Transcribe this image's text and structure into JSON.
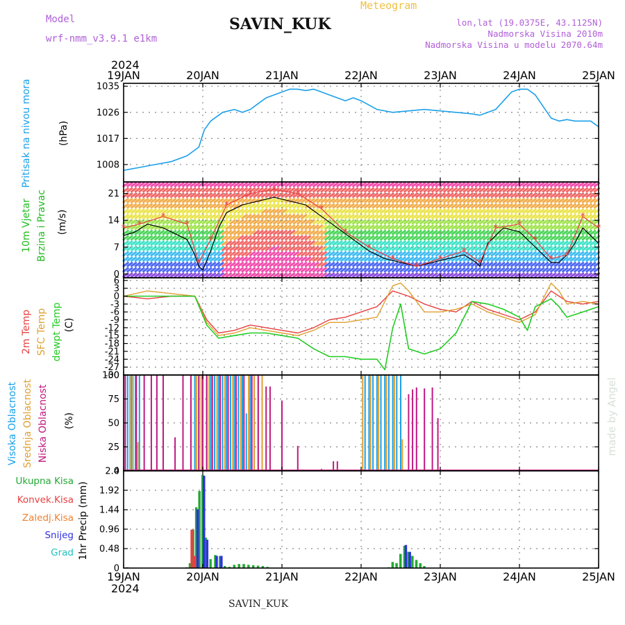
{
  "header": {
    "model_label": "Model",
    "model_value": "wrf-nmm_v3.9.1  e1km",
    "station": "SAVIN_KUK",
    "product": "Meteogram",
    "lonlat": "lon,lat (19.0375E, 43.1125N)",
    "elevation": "Nadmorska Visina 2010m",
    "model_elevation": "Nadmorska Visina u modelu 2070.64m",
    "year": "2024",
    "footer_station": "SAVIN_KUK",
    "credit": "made by Angel"
  },
  "colors": {
    "model": "#b05fd8",
    "product": "#f0c040",
    "pressure": "#1aa0e8",
    "wind_green": "#22bb22",
    "t2m": "#e84040",
    "sfc": "#e0a030",
    "dew": "#22cc22",
    "cloud_high": "#1aa0e8",
    "cloud_mid": "#e0a030",
    "cloud_low": "#c01880",
    "precip_total": "#22aa33",
    "precip_conv": "#e84040",
    "precip_frz": "#f08030",
    "precip_snow": "#3030e0",
    "precip_hail": "#20c0c0"
  },
  "chart_data": [
    {
      "type": "line",
      "panel": "pressure",
      "title": "Meteogram",
      "ylabel": [
        "Pritisak na nivou mora",
        "(hPa)"
      ],
      "ylim": [
        1002,
        1036
      ],
      "yticks": [
        1008,
        1017,
        1026,
        1035
      ],
      "x": [
        "19JAN",
        "20JAN",
        "21JAN",
        "22JAN",
        "23JAN",
        "24JAN",
        "25JAN"
      ],
      "grid": true,
      "series": [
        {
          "name": "Pritisak na nivou mora",
          "x": [
            0,
            0.2,
            0.4,
            0.6,
            0.8,
            0.95,
            1.02,
            1.1,
            1.25,
            1.4,
            1.5,
            1.6,
            1.7,
            1.8,
            1.9,
            2.0,
            2.1,
            2.2,
            2.3,
            2.4,
            2.5,
            2.6,
            2.7,
            2.8,
            2.9,
            3.0,
            3.2,
            3.4,
            3.6,
            3.8,
            4.0,
            4.2,
            4.4,
            4.5,
            4.6,
            4.7,
            4.8,
            4.9,
            5.0,
            5.1,
            5.2,
            5.3,
            5.4,
            5.5,
            5.6,
            5.7,
            5.8,
            5.9,
            6.0
          ],
          "values": [
            1006,
            1007,
            1008,
            1009,
            1011,
            1014,
            1020,
            1023,
            1026,
            1027,
            1026,
            1027,
            1029,
            1031,
            1032,
            1033,
            1034,
            1034,
            1033.5,
            1034,
            1033,
            1032,
            1031,
            1030,
            1031,
            1030,
            1027,
            1026,
            1026.5,
            1027,
            1026.5,
            1026,
            1025.5,
            1025,
            1026,
            1027,
            1030,
            1033,
            1034,
            1034,
            1032,
            1028,
            1024,
            1023,
            1023.5,
            1023,
            1023,
            1023,
            1021
          ]
        }
      ]
    },
    {
      "type": "line",
      "panel": "wind",
      "ylabel": [
        "10m Vjetar",
        "Brzina i Pravac",
        "(m/s)"
      ],
      "ylim": [
        -1,
        24
      ],
      "yticks": [
        0,
        7,
        14,
        21
      ],
      "x": [
        "19JAN",
        "20JAN",
        "21JAN",
        "22JAN",
        "23JAN",
        "24JAN",
        "25JAN"
      ],
      "grid": true,
      "series": [
        {
          "name": "wind speed",
          "x": [
            0,
            0.15,
            0.3,
            0.5,
            0.7,
            0.8,
            0.9,
            0.95,
            1.0,
            1.1,
            1.2,
            1.3,
            1.5,
            1.7,
            1.9,
            2.1,
            2.3,
            2.5,
            2.7,
            2.9,
            3.1,
            3.3,
            3.5,
            3.7,
            3.9,
            4.1,
            4.3,
            4.45,
            4.5,
            4.6,
            4.8,
            5.0,
            5.1,
            5.2,
            5.3,
            5.4,
            5.5,
            5.6,
            5.7,
            5.8,
            5.9,
            6.0
          ],
          "values": [
            10,
            11,
            13,
            12,
            10,
            9,
            5,
            2,
            1,
            6,
            12,
            16,
            18,
            19,
            20,
            19,
            18,
            15,
            12,
            9,
            6,
            4,
            3,
            2,
            3,
            4,
            5,
            3,
            2,
            8,
            12,
            11,
            9,
            7,
            5,
            3,
            3,
            5,
            8,
            12,
            10,
            8
          ]
        },
        {
          "name": "gust",
          "x": [
            0,
            0.2,
            0.5,
            0.8,
            0.95,
            1.1,
            1.3,
            1.6,
            1.9,
            2.2,
            2.5,
            2.8,
            3.1,
            3.4,
            3.7,
            4.0,
            4.3,
            4.5,
            4.7,
            5.0,
            5.2,
            5.4,
            5.6,
            5.8,
            6.0
          ],
          "values": [
            12,
            13,
            15,
            13,
            3,
            9,
            18,
            21,
            22,
            21,
            17,
            11,
            7,
            4,
            2,
            4,
            6,
            3,
            12,
            13,
            9,
            4,
            5,
            15,
            12
          ]
        }
      ]
    },
    {
      "type": "line",
      "panel": "temperature",
      "ylabel": [
        "2m Temp",
        "SFC Temp",
        "dewpt Temp",
        "(C)"
      ],
      "ylim": [
        -30,
        7
      ],
      "yticks": [
        6,
        3,
        0,
        -3,
        -6,
        -9,
        -12,
        -15,
        -18,
        -21,
        -24,
        -27,
        -30
      ],
      "x": [
        "19JAN",
        "20JAN",
        "21JAN",
        "22JAN",
        "23JAN",
        "24JAN",
        "25JAN"
      ],
      "grid": true,
      "series": [
        {
          "name": "2m Temp",
          "x": [
            0,
            0.3,
            0.6,
            0.9,
            1.05,
            1.2,
            1.4,
            1.6,
            1.8,
            2.0,
            2.2,
            2.4,
            2.6,
            2.8,
            3.0,
            3.2,
            3.4,
            3.6,
            3.8,
            4.0,
            4.2,
            4.4,
            4.6,
            4.8,
            5.0,
            5.2,
            5.4,
            5.5,
            5.6,
            5.8,
            6.0
          ],
          "values": [
            0,
            -1,
            0,
            0,
            -9,
            -14,
            -13,
            -11,
            -12,
            -13,
            -14,
            -12,
            -9,
            -8,
            -6,
            -4,
            2,
            0,
            -3,
            -5,
            -6,
            -2,
            -5,
            -7,
            -9,
            -6,
            2,
            0,
            -2,
            -3,
            -2
          ]
        },
        {
          "name": "SFC Temp",
          "x": [
            0,
            0.3,
            0.6,
            0.9,
            1.05,
            1.2,
            1.4,
            1.6,
            1.8,
            2.0,
            2.2,
            2.4,
            2.6,
            2.8,
            3.0,
            3.2,
            3.4,
            3.5,
            3.6,
            3.8,
            4.0,
            4.2,
            4.4,
            4.6,
            4.8,
            5.0,
            5.2,
            5.4,
            5.5,
            5.6,
            5.8,
            6.0
          ],
          "values": [
            0,
            2,
            1,
            0,
            -10,
            -15,
            -14,
            -12,
            -13,
            -14,
            -15,
            -13,
            -10,
            -10,
            -9,
            -8,
            4,
            5,
            2,
            -6,
            -6,
            -5,
            -3,
            -6,
            -8,
            -10,
            -7,
            5,
            2,
            -3,
            -2,
            -3
          ]
        },
        {
          "name": "dewpt Temp",
          "x": [
            0,
            0.3,
            0.6,
            0.9,
            1.05,
            1.2,
            1.4,
            1.6,
            1.8,
            2.0,
            2.2,
            2.4,
            2.6,
            2.8,
            3.0,
            3.2,
            3.3,
            3.4,
            3.5,
            3.6,
            3.8,
            4.0,
            4.2,
            4.4,
            4.6,
            4.8,
            5.0,
            5.1,
            5.2,
            5.4,
            5.5,
            5.6,
            5.8,
            6.0
          ],
          "values": [
            0,
            0,
            0,
            0,
            -11,
            -16,
            -15,
            -14,
            -14,
            -15,
            -16,
            -20,
            -23,
            -23,
            -24,
            -24,
            -28,
            -12,
            -3,
            -20,
            -22,
            -20,
            -14,
            -2,
            -3,
            -5,
            -8,
            -13,
            -4,
            -1,
            -4,
            -8,
            -6,
            -4
          ]
        }
      ]
    },
    {
      "type": "bar",
      "panel": "cloud",
      "ylabel": [
        "Visoka Oblacnost",
        "Srednja Oblacnost",
        "Niska Oblacnost",
        "(%)"
      ],
      "ylim": [
        0,
        100
      ],
      "yticks": [
        0,
        25,
        50,
        75,
        100
      ],
      "x": [
        "19JAN",
        "20JAN",
        "21JAN",
        "22JAN",
        "23JAN",
        "24JAN",
        "25JAN"
      ],
      "grid": true,
      "series": [
        {
          "name": "Visoka Oblacnost",
          "x": [
            0.05,
            0.1,
            0.15,
            0.2,
            0.9,
            0.95,
            1.0,
            1.05,
            1.1,
            1.15,
            1.2,
            1.25,
            1.3,
            1.35,
            1.4,
            1.45,
            1.5,
            1.55,
            1.6,
            1.65,
            3.05,
            3.1,
            3.15,
            3.2,
            3.25,
            3.3,
            3.35,
            3.4,
            3.45,
            3.5
          ],
          "values": [
            100,
            100,
            100,
            100,
            100,
            100,
            100,
            100,
            100,
            100,
            100,
            100,
            100,
            100,
            100,
            100,
            100,
            60,
            100,
            100,
            100,
            100,
            100,
            100,
            100,
            100,
            100,
            100,
            100,
            100
          ]
        },
        {
          "name": "Srednja Oblacnost",
          "x": [
            0.08,
            0.12,
            0.18,
            0.85,
            0.92,
            0.98,
            1.08,
            1.18,
            1.28,
            1.38,
            1.48,
            1.58,
            1.65,
            1.7,
            1.75,
            3.02,
            3.12,
            3.22,
            3.32,
            3.42,
            3.52
          ],
          "values": [
            100,
            100,
            30,
            100,
            100,
            100,
            100,
            100,
            100,
            100,
            100,
            100,
            100,
            100,
            100,
            100,
            100,
            100,
            100,
            100,
            33
          ]
        },
        {
          "name": "Niska Oblacnost",
          "x": [
            0.02,
            0.16,
            0.26,
            0.35,
            0.42,
            0.5,
            0.65,
            0.75,
            0.85,
            0.95,
            1.0,
            1.05,
            1.12,
            1.22,
            1.32,
            1.42,
            1.52,
            1.62,
            1.7,
            1.8,
            1.85,
            2.0,
            2.2,
            2.5,
            2.65,
            2.7,
            3.0,
            3.6,
            3.65,
            3.7,
            3.8,
            3.9,
            3.97
          ],
          "values": [
            100,
            100,
            100,
            100,
            100,
            100,
            35,
            100,
            100,
            100,
            100,
            100,
            100,
            100,
            100,
            100,
            100,
            100,
            100,
            88,
            88,
            73,
            26,
            2,
            10,
            10,
            1,
            80,
            85,
            87,
            86,
            87,
            55
          ]
        }
      ]
    },
    {
      "type": "bar",
      "panel": "precip",
      "ylabel": [
        "1hr Precip (mm)"
      ],
      "ylim": [
        0,
        2.4
      ],
      "yticks": [
        0,
        0.48,
        0.96,
        1.44,
        1.92,
        2.4
      ],
      "x": [
        "19JAN",
        "20JAN",
        "21JAN",
        "22JAN",
        "23JAN",
        "24JAN",
        "25JAN"
      ],
      "grid": true,
      "legend": [
        "Ukupna Kisa",
        "Konvek.Kisa",
        "Zaledj.Kisa",
        "Snijeg",
        "Grad"
      ],
      "series": [
        {
          "name": "Ukupna Kisa",
          "x": [
            0.05,
            0.8,
            0.84,
            0.88,
            0.92,
            0.96,
            1.0,
            1.04,
            1.1,
            1.16,
            1.22,
            1.28,
            1.34,
            1.4,
            1.46,
            1.52,
            1.58,
            1.64,
            1.7,
            1.76,
            1.82,
            3.35,
            3.4,
            3.45,
            3.5,
            3.55,
            3.6,
            3.65,
            3.7,
            3.75,
            3.8
          ],
          "values": [
            0.02,
            0.02,
            0.12,
            0.95,
            1.5,
            1.9,
            2.3,
            0.75,
            0.22,
            0.32,
            0.3,
            0.05,
            0.03,
            0.08,
            0.1,
            0.1,
            0.08,
            0.07,
            0.06,
            0.05,
            0.03,
            0.02,
            0.15,
            0.12,
            0.35,
            0.55,
            0.4,
            0.3,
            0.2,
            0.12,
            0.05
          ]
        },
        {
          "name": "Konvek.Kisa",
          "x": [
            0.88,
            0.92
          ],
          "values": [
            0.95,
            0.3
          ]
        },
        {
          "name": "Snijeg",
          "x": [
            0.92,
            1.0,
            1.04,
            1.16,
            1.22,
            3.55,
            3.6
          ],
          "values": [
            1.45,
            2.28,
            0.7,
            0.3,
            0.3,
            0.57,
            0.4
          ]
        }
      ]
    }
  ]
}
